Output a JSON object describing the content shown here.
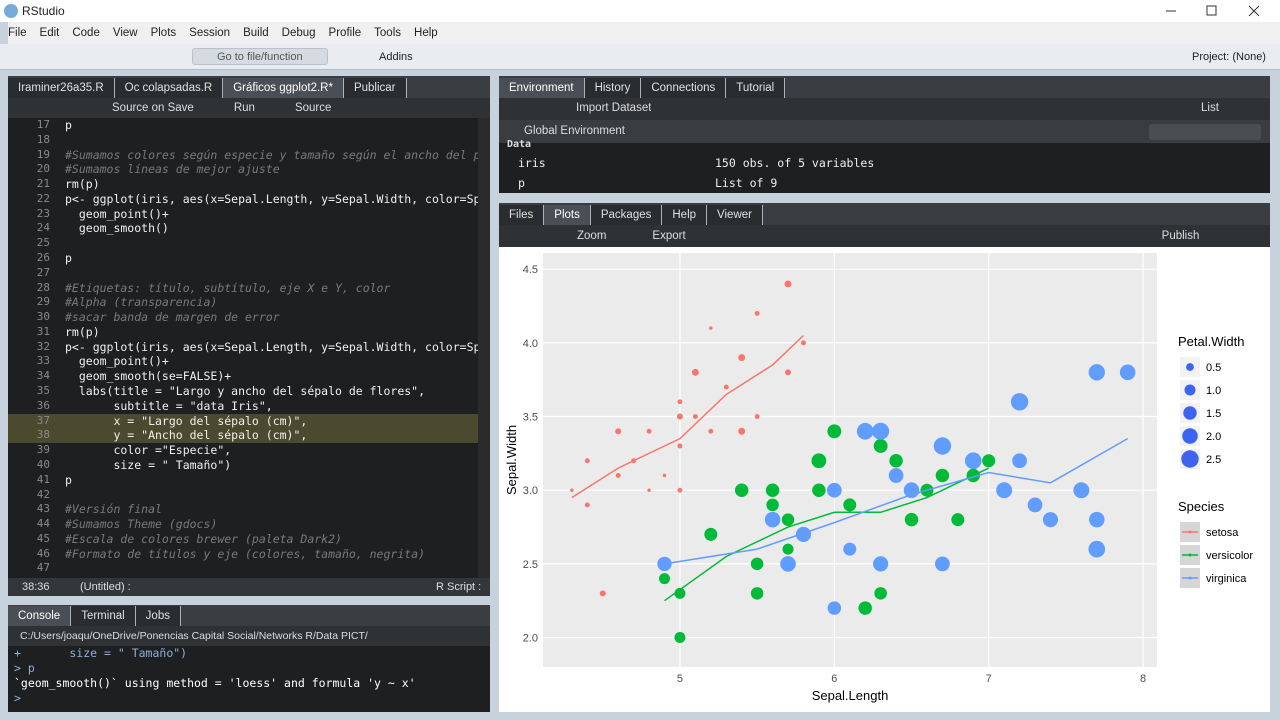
{
  "window": {
    "title": "RStudio"
  },
  "menu": [
    "File",
    "Edit",
    "Code",
    "View",
    "Plots",
    "Session",
    "Build",
    "Debug",
    "Profile",
    "Tools",
    "Help"
  ],
  "toolbar": {
    "goto": "Go to file/function",
    "addins": "Addins",
    "project": "Project: (None)"
  },
  "editor": {
    "tabs": [
      "Iraminer26a35.R",
      "Oc colapsadas.R",
      "Gráficos ggplot2.R*",
      "Publicar"
    ],
    "toolbar": [
      "Source on Save",
      "Run",
      "Source"
    ],
    "lines": [
      {
        "n": 17,
        "code": "p"
      },
      {
        "n": 18
      },
      {
        "n": 19,
        "code": "#Sumamos colores según especie y tamaño según el ancho del p"
      },
      {
        "n": 20,
        "code": "#Sumamos líneas de mejor ajuste"
      },
      {
        "n": 21,
        "code": "rm(p)"
      },
      {
        "n": 22,
        "code": "p<- ggplot(iris, aes(x=Sepal.Length, y=Sepal.Width, color=Sp"
      },
      {
        "n": 23,
        "code": "  geom_point()+"
      },
      {
        "n": 24,
        "code": "  geom_smooth()"
      },
      {
        "n": 25
      },
      {
        "n": 26,
        "code": "p"
      },
      {
        "n": 27
      },
      {
        "n": 28,
        "code": "#Etiquetas: título, subtítulo, eje X e Y, color"
      },
      {
        "n": 29,
        "code": "#Alpha (transparencia)"
      },
      {
        "n": 30,
        "code": "#sacar banda de margen de error"
      },
      {
        "n": 31,
        "code": "rm(p)"
      },
      {
        "n": 32,
        "code": "p<- ggplot(iris, aes(x=Sepal.Length, y=Sepal.Width, color=Sp"
      },
      {
        "n": 33,
        "code": "  geom_point()+"
      },
      {
        "n": 34,
        "code": "  geom_smooth(se=FALSE)+"
      },
      {
        "n": 35,
        "code": "  labs(title = \"Largo y ancho del sépalo de flores\","
      },
      {
        "n": 36,
        "code": "       subtitle = \"data Iris\","
      },
      {
        "n": 37,
        "code": "       x = \"Largo del sépalo (cm)\",",
        "selected": true
      },
      {
        "n": 38,
        "code": "       y = \"Ancho del sépalo (cm)\",",
        "selected": true
      },
      {
        "n": 39,
        "code": "       color =\"Especie\","
      },
      {
        "n": 40,
        "code": "       size = \" Tamaño\")"
      },
      {
        "n": 41,
        "code": "p"
      },
      {
        "n": 42
      },
      {
        "n": 43,
        "code": "#Versión final"
      },
      {
        "n": 44,
        "code": "#Sumamos Theme (gdocs)"
      },
      {
        "n": 45,
        "code": "#Escala de colores brewer (paleta Dark2)"
      },
      {
        "n": 46,
        "code": "#Formato de títulos y eje (colores, tamaño, negrita)"
      },
      {
        "n": 47
      }
    ],
    "status": {
      "position": "38:36",
      "scope": "(Untitled) :",
      "filetype": "R Script :"
    }
  },
  "console": {
    "tabs": [
      "Console",
      "Terminal",
      "Jobs"
    ],
    "path": "C:/Users/joaqu/OneDrive/Ponencias Capital Social/Networks R/Data PICT/",
    "lines": [
      "+       size = \" Tamaño\")",
      "> p",
      "`geom_smooth()` using method = 'loess' and formula 'y ~ x'",
      ">"
    ]
  },
  "environment": {
    "tabs": [
      "Environment",
      "History",
      "Connections",
      "Tutorial"
    ],
    "import": "Import Dataset",
    "view": "List",
    "scope": "Global Environment",
    "section": "Data",
    "rows": [
      {
        "name": "iris",
        "value": "150 obs. of 5 variables"
      },
      {
        "name": "p",
        "value": "List of 9"
      }
    ]
  },
  "files": {
    "tabs": [
      "Files",
      "Plots",
      "Packages",
      "Help",
      "Viewer"
    ],
    "toolbar": [
      "Zoom",
      "Export",
      "Publish"
    ]
  },
  "plot": {
    "type": "scatter",
    "x_label": "Sepal.Length",
    "y_label": "Sepal.Width",
    "xlim": [
      4.113,
      8.09
    ],
    "ylim": [
      1.8,
      4.61
    ],
    "xticks": [
      5,
      6,
      7,
      8
    ],
    "yticks": [
      {
        "value": 2,
        "label": "2.0"
      },
      2.5,
      {
        "value": 3,
        "label": "3.0"
      },
      3.5,
      {
        "value": 4,
        "label": "4.0"
      },
      4.5
    ],
    "size_title": "Petal.Width",
    "size_keys": [
      0.5,
      {
        "value": 1,
        "label": "1.0"
      },
      1.5,
      {
        "value": 2,
        "label": "2.0"
      },
      2.5
    ],
    "size_key_color": "#3d63f0",
    "color_title": "Species",
    "series": [
      {
        "name": "setosa",
        "color": "#F8766D",
        "x": [
          4.3,
          4.4,
          4.4,
          4.5,
          4.6,
          4.6,
          4.7,
          4.8,
          4.8,
          4.9,
          5.0,
          5.0,
          5.0,
          5.0,
          5.1,
          5.1,
          5.2,
          5.2,
          5.3,
          5.4,
          5.4,
          5.5,
          5.5,
          5.7,
          5.7,
          5.8
        ],
        "y": [
          3.0,
          2.9,
          3.2,
          2.3,
          3.1,
          3.4,
          3.2,
          3.0,
          3.4,
          3.1,
          3.0,
          3.3,
          3.5,
          3.6,
          3.5,
          3.8,
          3.4,
          4.1,
          3.7,
          3.9,
          3.4,
          3.5,
          4.2,
          3.8,
          4.4,
          4.0
        ],
        "size": [
          0.1,
          0.2,
          0.2,
          0.3,
          0.2,
          0.3,
          0.2,
          0.1,
          0.2,
          0.1,
          0.2,
          0.2,
          0.3,
          0.2,
          0.2,
          0.4,
          0.2,
          0.1,
          0.2,
          0.4,
          0.4,
          0.2,
          0.2,
          0.3,
          0.4,
          0.2
        ],
        "smooth": {
          "x": [
            4.3,
            4.6,
            5.0,
            5.3,
            5.6,
            5.8
          ],
          "y": [
            2.95,
            3.15,
            3.35,
            3.65,
            3.85,
            4.05
          ]
        }
      },
      {
        "name": "versicolor",
        "color": "#00BA38",
        "x": [
          4.9,
          5.0,
          5.0,
          5.2,
          5.4,
          5.5,
          5.5,
          5.6,
          5.6,
          5.7,
          5.7,
          5.8,
          5.9,
          5.9,
          6.0,
          6.0,
          6.1,
          6.2,
          6.3,
          6.3,
          6.4,
          6.5,
          6.6,
          6.7,
          6.8,
          6.9,
          7.0
        ],
        "y": [
          2.4,
          2.0,
          2.3,
          2.7,
          3.0,
          2.3,
          2.5,
          3.0,
          2.9,
          2.8,
          2.6,
          2.7,
          3.2,
          3.0,
          3.4,
          2.2,
          2.9,
          2.2,
          2.3,
          3.3,
          3.2,
          2.8,
          3.0,
          3.1,
          2.8,
          3.1,
          3.2
        ],
        "size": [
          1.0,
          1.0,
          1.0,
          1.4,
          1.5,
          1.3,
          1.3,
          1.5,
          1.3,
          1.3,
          1.0,
          1.0,
          1.8,
          1.5,
          1.6,
          1.0,
          1.4,
          1.5,
          1.3,
          1.6,
          1.5,
          1.5,
          1.4,
          1.5,
          1.4,
          1.5,
          1.4
        ],
        "smooth": {
          "x": [
            4.9,
            5.3,
            5.7,
            6.0,
            6.3,
            6.6,
            7.0
          ],
          "y": [
            2.25,
            2.55,
            2.75,
            2.85,
            2.85,
            2.95,
            3.15
          ]
        }
      },
      {
        "name": "virginica",
        "color": "#619CFF",
        "x": [
          4.9,
          5.6,
          5.7,
          5.8,
          6.0,
          6.0,
          6.1,
          6.2,
          6.3,
          6.3,
          6.4,
          6.5,
          6.7,
          6.7,
          6.9,
          7.1,
          7.2,
          7.2,
          7.3,
          7.4,
          7.6,
          7.7,
          7.7,
          7.7,
          7.9
        ],
        "y": [
          2.5,
          2.8,
          2.5,
          2.7,
          2.2,
          3.0,
          2.6,
          3.4,
          3.4,
          2.5,
          3.1,
          3.0,
          3.3,
          2.5,
          3.2,
          3.0,
          3.6,
          3.2,
          2.9,
          2.8,
          3.0,
          3.8,
          2.6,
          2.8,
          3.8
        ],
        "size": [
          1.7,
          2.0,
          2.0,
          1.9,
          1.5,
          1.8,
          1.4,
          2.3,
          2.4,
          1.9,
          1.8,
          2.0,
          2.5,
          1.8,
          2.3,
          2.1,
          2.5,
          1.8,
          1.8,
          1.9,
          2.1,
          2.2,
          2.3,
          2.0,
          2.0
        ],
        "smooth": {
          "x": [
            4.9,
            5.5,
            6.0,
            6.5,
            7.0,
            7.4,
            7.9
          ],
          "y": [
            2.5,
            2.6,
            2.78,
            2.97,
            3.12,
            3.05,
            3.35
          ]
        }
      }
    ]
  }
}
